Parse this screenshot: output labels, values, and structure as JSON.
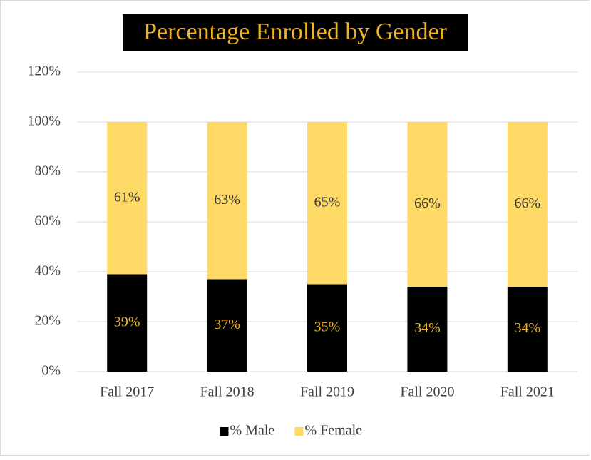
{
  "chart_data": {
    "type": "stacked_bar",
    "title": "Percentage Enrolled by Gender",
    "categories": [
      "Fall 2017",
      "Fall 2018",
      "Fall 2019",
      "Fall 2020",
      "Fall 2021"
    ],
    "series": [
      {
        "name": "% Male",
        "color": "#000000",
        "label_color": "#f0b323",
        "values": [
          39,
          37,
          35,
          34,
          34
        ],
        "value_labels": [
          "39%",
          "37%",
          "35%",
          "34%",
          "34%"
        ]
      },
      {
        "name": "% Female",
        "color": "#ffd966",
        "label_color": "#333333",
        "values": [
          61,
          63,
          65,
          66,
          66
        ],
        "value_labels": [
          "61%",
          "63%",
          "65%",
          "66%",
          "66%"
        ]
      }
    ],
    "ylim": [
      0,
      120
    ],
    "yticks": [
      {
        "value": 0,
        "label": "0%"
      },
      {
        "value": 20,
        "label": "20%"
      },
      {
        "value": 40,
        "label": "40%"
      },
      {
        "value": 60,
        "label": "60%"
      },
      {
        "value": 80,
        "label": "80%"
      },
      {
        "value": 100,
        "label": "100%"
      },
      {
        "value": 120,
        "label": "120%"
      }
    ],
    "grid": true,
    "legend": "bottom"
  }
}
